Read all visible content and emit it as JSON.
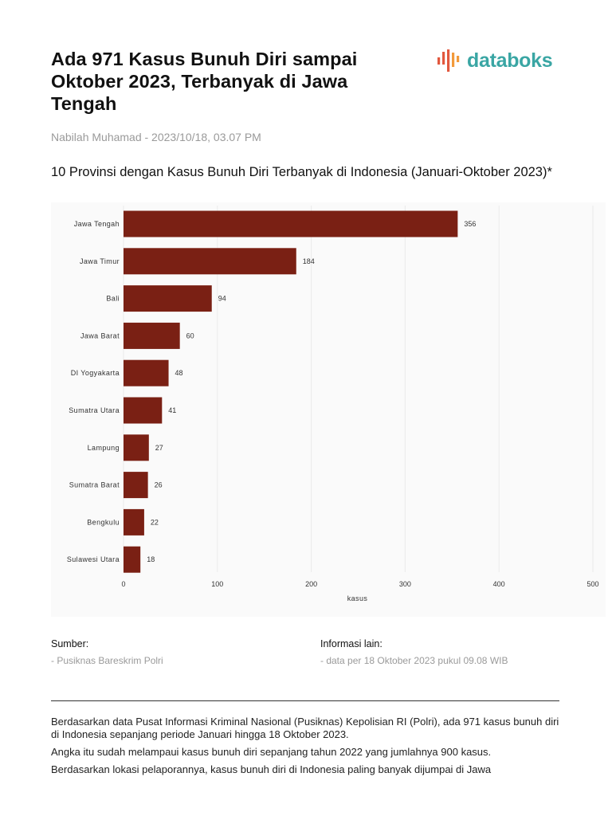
{
  "article": {
    "headline": "Ada 971 Kasus Bunuh Diri sampai Oktober 2023, Terbanyak di Jawa Tengah",
    "byline": "Nabilah Muhamad - 2023/10/18, 03.07 PM",
    "logo_text": "databoks"
  },
  "colors": {
    "bar": "#7a2014",
    "brand_teal": "#3aa6a4",
    "brand_accent": "#e2583e"
  },
  "chart_data": {
    "type": "bar",
    "orientation": "horizontal",
    "title": "10 Provinsi dengan Kasus Bunuh Diri Terbanyak di Indonesia (Januari-Oktober 2023)*",
    "categories": [
      "Jawa Tengah",
      "Jawa Timur",
      "Bali",
      "Jawa Barat",
      "DI Yogyakarta",
      "Sumatra Utara",
      "Lampung",
      "Sumatra Barat",
      "Bengkulu",
      "Sulawesi Utara"
    ],
    "values": [
      356,
      184,
      94,
      60,
      48,
      41,
      27,
      26,
      22,
      18
    ],
    "xlabel": "kasus",
    "ylabel": "",
    "xlim": [
      0,
      500
    ],
    "xticks": [
      0,
      100,
      200,
      300,
      400,
      500
    ],
    "grid": true,
    "data_labels": true
  },
  "footer": {
    "source_label": "Sumber:",
    "source_value": "- Pusiknas Bareskrim Polri",
    "info_label": "Informasi lain:",
    "info_value": "- data per 18 Oktober 2023 pukul 09.08 WIB"
  },
  "body": {
    "paragraphs": [
      "Berdasarkan data Pusat Informasi Kriminal Nasional (Pusiknas) Kepolisian RI (Polri), ada 971 kasus bunuh diri di Indonesia sepanjang periode Januari hingga 18 Oktober 2023.",
      "Angka itu sudah melampaui kasus bunuh diri sepanjang tahun 2022 yang jumlahnya 900 kasus.",
      "Berdasarkan lokasi pelaporannya, kasus bunuh diri di Indonesia paling banyak dijumpai di Jawa"
    ]
  }
}
